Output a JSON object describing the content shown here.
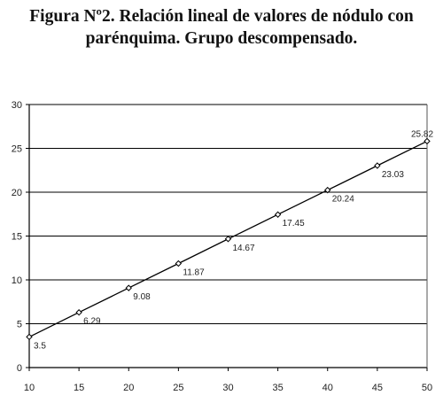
{
  "chart_data": {
    "type": "line",
    "title_line1": "Figura Nº2. Relación lineal de valores de nódulo con",
    "title_line2": "parénquima. Grupo descompensado.",
    "xlabel": "",
    "ylabel": "",
    "x": [
      10,
      15,
      20,
      25,
      30,
      35,
      40,
      45,
      50
    ],
    "series": [
      {
        "values": [
          3.5,
          6.29,
          9.08,
          11.87,
          14.67,
          17.45,
          20.24,
          23.03,
          25.82
        ],
        "labels": [
          "3.5",
          "6.29",
          "9.08",
          "11.87",
          "14.67",
          "17.45",
          "20.24",
          "23.03",
          "25.82"
        ]
      }
    ],
    "xlim": [
      10,
      50
    ],
    "ylim": [
      0,
      30
    ],
    "xticks": [
      10,
      15,
      20,
      25,
      30,
      35,
      40,
      45,
      50
    ],
    "yticks": [
      0,
      5,
      10,
      15,
      20,
      25,
      30
    ],
    "grid": "horizontal",
    "legend": "none",
    "colors": {
      "line": "#000000",
      "grid": "#000000",
      "marker_fill": "#ffffff"
    }
  }
}
